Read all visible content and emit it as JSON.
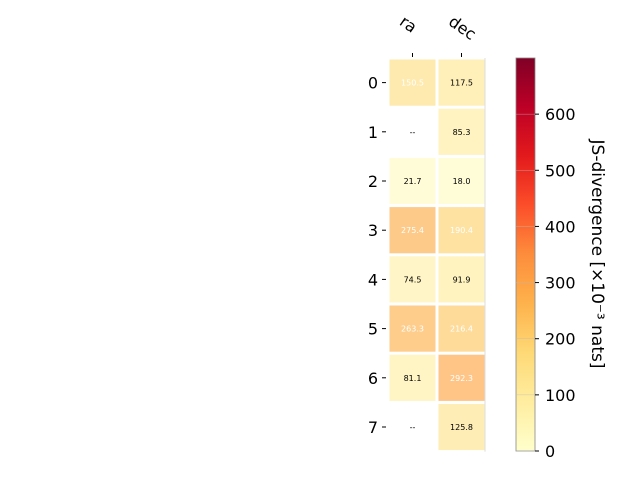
{
  "chart_data": {
    "type": "heatmap",
    "title": "",
    "columns": [
      "ra",
      "dec"
    ],
    "rows": [
      "0",
      "1",
      "2",
      "3",
      "4",
      "5",
      "6",
      "7"
    ],
    "values": [
      [
        150.5,
        117.5
      ],
      [
        null,
        85.3
      ],
      [
        21.7,
        18.0
      ],
      [
        275.4,
        190.4
      ],
      [
        74.5,
        91.9
      ],
      [
        263.3,
        216.4
      ],
      [
        81.1,
        292.3
      ],
      [
        null,
        125.8
      ]
    ],
    "labels": [
      [
        "150.5",
        "117.5"
      ],
      [
        "--",
        "85.3"
      ],
      [
        "21.7",
        "18.0"
      ],
      [
        "275.4",
        "190.4"
      ],
      [
        "74.5",
        "91.9"
      ],
      [
        "263.3",
        "216.4"
      ],
      [
        "81.1",
        "292.3"
      ],
      [
        "--",
        "125.8"
      ]
    ],
    "colorbar": {
      "label": "JS-divergence [×10⁻³ nats]",
      "min": 0,
      "max": 700,
      "ticks": [
        "0",
        "100",
        "200",
        "300",
        "400",
        "500",
        "600"
      ],
      "tick_values": [
        0,
        100,
        200,
        300,
        400,
        500,
        600
      ],
      "colormap": "YlOrRd"
    },
    "colors": {
      "missing": "#ffffff",
      "cell_border": "#ffffff",
      "light_text": "#ffffff",
      "dark_text": "#000000"
    }
  }
}
